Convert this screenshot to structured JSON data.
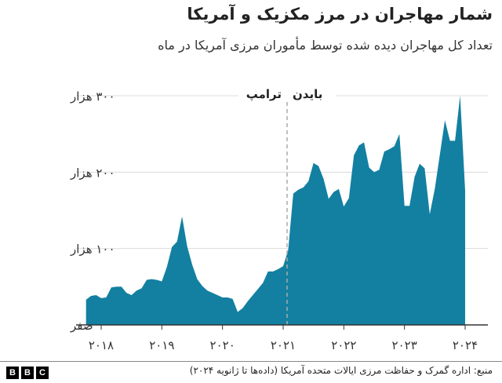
{
  "title": "شمار مهاجران در مرز مکزیک و آمریکا",
  "subtitle": "تعداد کل مهاجران دیده شده توسط مأموران مرزی آمریکا در ماه",
  "source": "منبع: اداره گمرک و حفاظت مرزی ایالات متحده آمریکا (داده‌ها تا ژانویه ۲۰۲۴)",
  "logo": [
    "B",
    "B",
    "C"
  ],
  "chart_data": {
    "type": "area",
    "color": "#1380a1",
    "ylim": [
      0,
      300000
    ],
    "grid": true,
    "y_ticks": [
      0,
      100000,
      200000,
      300000
    ],
    "y_tick_labels": [
      "صفر",
      "۱۰۰ هزار",
      "۲۰۰ هزار",
      "۳۰۰ هزار"
    ],
    "x_ticks": [
      "2018-01",
      "2019-01",
      "2020-01",
      "2021-01",
      "2022-01",
      "2023-01",
      "2024-01"
    ],
    "x_tick_labels": [
      "۲۰۱۸",
      "۲۰۱۹",
      "۲۰۲۰",
      "۲۰۲۱",
      "۲۰۲۲",
      "۲۰۲۳",
      "۲۰۲۴"
    ],
    "annotations": {
      "divider_date": "2021-01",
      "left_label": "ترامپ",
      "right_label": "بایدن"
    },
    "x": [
      "2017-10",
      "2017-11",
      "2017-12",
      "2018-01",
      "2018-02",
      "2018-03",
      "2018-04",
      "2018-05",
      "2018-06",
      "2018-07",
      "2018-08",
      "2018-09",
      "2018-10",
      "2018-11",
      "2018-12",
      "2019-01",
      "2019-02",
      "2019-03",
      "2019-04",
      "2019-05",
      "2019-06",
      "2019-07",
      "2019-08",
      "2019-09",
      "2019-10",
      "2019-11",
      "2019-12",
      "2020-01",
      "2020-02",
      "2020-03",
      "2020-04",
      "2020-05",
      "2020-06",
      "2020-07",
      "2020-08",
      "2020-09",
      "2020-10",
      "2020-11",
      "2020-12",
      "2021-01",
      "2021-02",
      "2021-03",
      "2021-04",
      "2021-05",
      "2021-06",
      "2021-07",
      "2021-08",
      "2021-09",
      "2021-10",
      "2021-11",
      "2021-12",
      "2022-01",
      "2022-02",
      "2022-03",
      "2022-04",
      "2022-05",
      "2022-06",
      "2022-07",
      "2022-08",
      "2022-09",
      "2022-10",
      "2022-11",
      "2022-12",
      "2023-01",
      "2023-02",
      "2023-03",
      "2023-04",
      "2023-05",
      "2023-06",
      "2023-07",
      "2023-08",
      "2023-09",
      "2023-10",
      "2023-11",
      "2023-12",
      "2024-01"
    ],
    "values": [
      33000,
      38000,
      39000,
      35000,
      36000,
      49000,
      50000,
      50000,
      42000,
      39000,
      45000,
      48000,
      59000,
      60000,
      59000,
      57000,
      76000,
      102000,
      109000,
      142000,
      103000,
      79000,
      60000,
      51000,
      45000,
      42000,
      39000,
      36000,
      36000,
      34000,
      17000,
      22000,
      31000,
      39000,
      47000,
      55000,
      70000,
      70000,
      73000,
      77000,
      98000,
      172000,
      177000,
      180000,
      188000,
      212000,
      208000,
      191000,
      165000,
      174000,
      178000,
      155000,
      166000,
      222000,
      235000,
      239000,
      206000,
      200000,
      203000,
      227000,
      230000,
      234000,
      250000,
      156000,
      156000,
      194000,
      211000,
      205000,
      145000,
      178000,
      223000,
      268000,
      241000,
      241000,
      300000,
      176000
    ]
  }
}
